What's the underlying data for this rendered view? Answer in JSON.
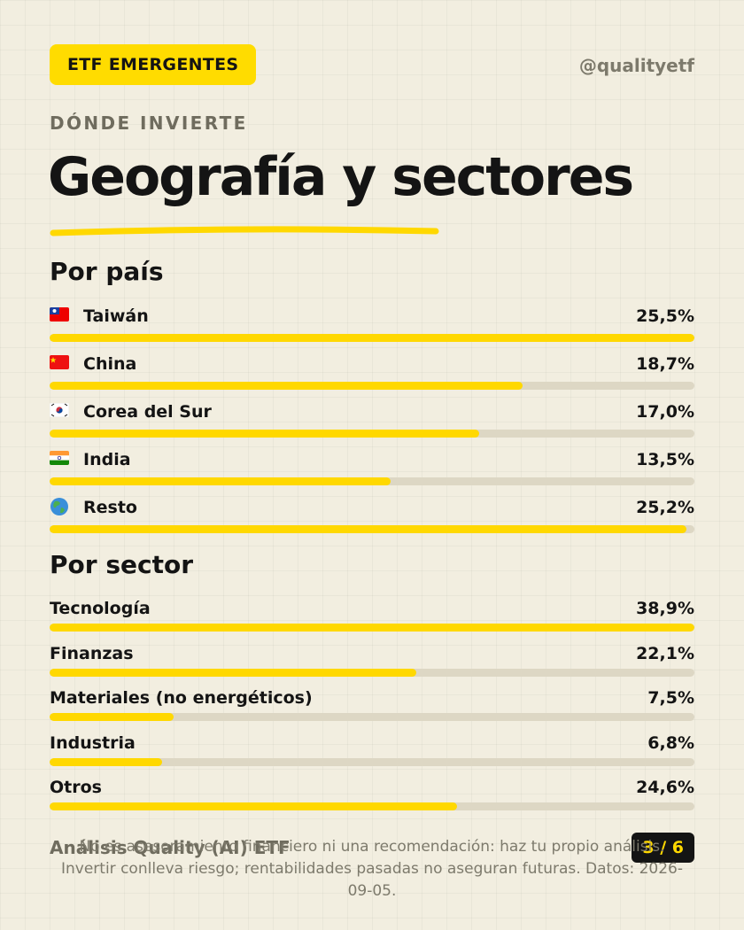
{
  "header": {
    "badge": "ETF EMERGENTES",
    "handle": "@qualityetf",
    "kicker": "DÓNDE INVIERTE",
    "title": "Geografía y sectores"
  },
  "colors": {
    "accent": "#ffd800",
    "background": "#f2eee0",
    "track": "#ddd7c4",
    "text": "#141414",
    "muted": "#7d7a6c"
  },
  "chart_data": [
    {
      "type": "bar",
      "title": "Por país",
      "orientation": "horizontal",
      "categories": [
        "Taiwán",
        "China",
        "Corea del Sur",
        "India",
        "Resto"
      ],
      "values": [
        25.5,
        18.7,
        17.0,
        13.5,
        25.2
      ],
      "labels": [
        "25,5%",
        "18,7%",
        "17,0%",
        "13,5%",
        "25,2%"
      ],
      "icons": [
        "flag-taiwan",
        "flag-china",
        "flag-south-korea",
        "flag-india",
        "globe"
      ],
      "xlim": [
        0,
        25.5
      ]
    },
    {
      "type": "bar",
      "title": "Por sector",
      "orientation": "horizontal",
      "categories": [
        "Tecnología",
        "Finanzas",
        "Materiales (no energéticos)",
        "Industria",
        "Otros"
      ],
      "values": [
        38.9,
        22.1,
        7.5,
        6.8,
        24.6
      ],
      "labels": [
        "38,9%",
        "22,1%",
        "7,5%",
        "6,8%",
        "24,6%"
      ],
      "xlim": [
        0,
        38.9
      ]
    }
  ],
  "footer": {
    "brand": "Análisis Quality (AI) ETF",
    "page": "3 / 6",
    "disclaimer": "No es asesoramiento financiero ni una recomendación: haz tu propio análisis. Invertir conlleva riesgo; rentabilidades pasadas no aseguran futuras. Datos: 2026-09-05."
  }
}
